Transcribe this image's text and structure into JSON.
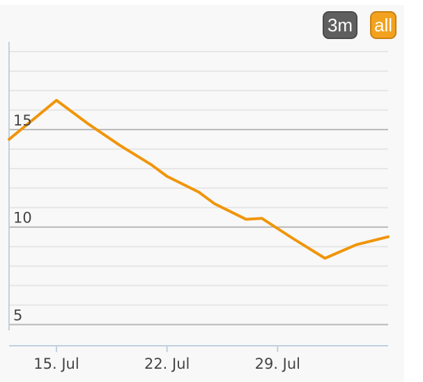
{
  "range_selector": {
    "buttons": [
      {
        "label": "3m",
        "active": false
      },
      {
        "label": "all",
        "active": true
      }
    ]
  },
  "colors": {
    "series": "#f0950a",
    "active_button": "#f2a21e",
    "inactive_button": "#5f5f5f",
    "panel_background": "#f8f8f8",
    "grid": "#e6e6e6",
    "major_grid": "#b8b8b8",
    "axis": "#c0d0e0"
  },
  "chart_data": {
    "type": "line",
    "title": "",
    "xlabel": "",
    "ylabel": "",
    "x": [
      "2025-07-12",
      "2025-07-15",
      "2025-07-17",
      "2025-07-19",
      "2025-07-21",
      "2025-07-22",
      "2025-07-24",
      "2025-07-25",
      "2025-07-27",
      "2025-07-28",
      "2025-07-30",
      "2025-08-01",
      "2025-08-03",
      "2025-08-05"
    ],
    "x_ticks": [
      "15. Jul",
      "22. Jul",
      "29. Jul"
    ],
    "x_tick_dates": [
      "2025-07-15",
      "2025-07-22",
      "2025-07-29"
    ],
    "xlim": [
      "2025-07-12",
      "2025-08-05"
    ],
    "series": [
      {
        "values": [
          14.5,
          16.5,
          15.3,
          14.2,
          13.2,
          12.6,
          11.8,
          11.2,
          10.4,
          10.45,
          9.4,
          8.4,
          9.1,
          9.5
        ]
      }
    ],
    "y_ticks": [
      "5",
      "10",
      "15"
    ],
    "y_tick_values": [
      5,
      10,
      15
    ],
    "ylim": [
      4.7,
      19.5
    ],
    "y_minor_step": 1,
    "grid": true,
    "legend": "none"
  }
}
